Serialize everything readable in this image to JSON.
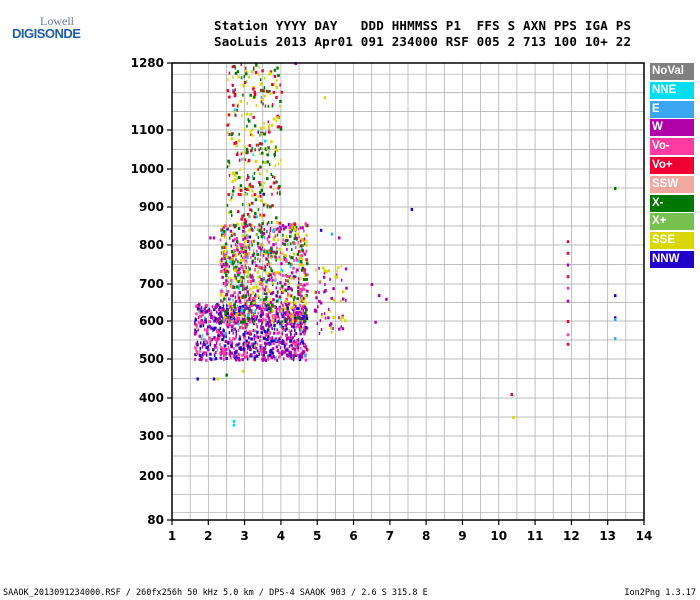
{
  "logo": {
    "line1": "Lowell",
    "line2": "DIGISONDE"
  },
  "header": {
    "line1": "Station YYYY DAY   DDD HHMMSS P1  FFS S AXN PPS IGA PS",
    "line2": "SaoLuis 2013 Apr01 091 234000 RSF 005 2 713 100 10+ 22"
  },
  "legend": [
    {
      "label": "NoVal",
      "color": "#808080"
    },
    {
      "label": "NNE",
      "color": "#00dcf0"
    },
    {
      "label": "E",
      "color": "#3aa6f0"
    },
    {
      "label": "W",
      "color": "#b000a8"
    },
    {
      "label": "Vo-",
      "color": "#ff3aa0"
    },
    {
      "label": "Vo+",
      "color": "#f00030"
    },
    {
      "label": "SSW",
      "color": "#f0a8a0"
    },
    {
      "label": "X-",
      "color": "#007800"
    },
    {
      "label": "X+",
      "color": "#78c050"
    },
    {
      "label": "SSE",
      "color": "#d8d800"
    },
    {
      "label": "NNW",
      "color": "#2000c8"
    }
  ],
  "chart_data": {
    "type": "scatter",
    "title": "",
    "xlabel": "",
    "ylabel": "",
    "xlim": [
      1,
      14
    ],
    "ylim": [
      80,
      1280
    ],
    "y_scale": "nonlinear (ionogram virtual height)",
    "xticks": [
      1,
      2,
      3,
      4,
      5,
      6,
      7,
      8,
      9,
      10,
      11,
      12,
      13,
      14
    ],
    "yticks": [
      80,
      200,
      300,
      400,
      500,
      600,
      700,
      800,
      900,
      1000,
      1100,
      1280
    ],
    "grid": true,
    "legend_position": "right",
    "regions": [
      {
        "x_range": [
          1.6,
          4.7
        ],
        "y_range": [
          500,
          650
        ],
        "density": "high",
        "dominant": [
          "W",
          "Vo-",
          "NNW"
        ]
      },
      {
        "x_range": [
          2.3,
          4.7
        ],
        "y_range": [
          600,
          860
        ],
        "density": "high",
        "dominant": [
          "X-",
          "SSE",
          "Vo-",
          "W"
        ]
      },
      {
        "x_range": [
          2.5,
          4.0
        ],
        "y_range": [
          860,
          1280
        ],
        "density": "medium",
        "dominant": [
          "X-",
          "SSE",
          "Vo+"
        ]
      },
      {
        "x_range": [
          4.9,
          5.8
        ],
        "y_range": [
          570,
          750
        ],
        "density": "low",
        "dominant": [
          "W",
          "SSE"
        ]
      }
    ],
    "points": [
      {
        "x": 2.05,
        "y": 820,
        "series": "W"
      },
      {
        "x": 2.15,
        "y": 820,
        "series": "W"
      },
      {
        "x": 2.7,
        "y": 330,
        "series": "NNE"
      },
      {
        "x": 2.7,
        "y": 340,
        "series": "NNE"
      },
      {
        "x": 2.15,
        "y": 450,
        "series": "NNW"
      },
      {
        "x": 1.7,
        "y": 450,
        "series": "NNW"
      },
      {
        "x": 7.6,
        "y": 895,
        "series": "NNW"
      },
      {
        "x": 6.5,
        "y": 700,
        "series": "W"
      },
      {
        "x": 6.7,
        "y": 670,
        "series": "W"
      },
      {
        "x": 6.9,
        "y": 660,
        "series": "W"
      },
      {
        "x": 6.6,
        "y": 598,
        "series": "W"
      },
      {
        "x": 10.35,
        "y": 410,
        "series": "Vo+"
      },
      {
        "x": 10.4,
        "y": 350,
        "series": "SSE"
      },
      {
        "x": 11.9,
        "y": 810,
        "series": "Vo+"
      },
      {
        "x": 11.9,
        "y": 780,
        "series": "Vo+"
      },
      {
        "x": 11.9,
        "y": 750,
        "series": "W"
      },
      {
        "x": 11.9,
        "y": 720,
        "series": "Vo+"
      },
      {
        "x": 11.9,
        "y": 690,
        "series": "Vo-"
      },
      {
        "x": 11.9,
        "y": 655,
        "series": "W"
      },
      {
        "x": 11.9,
        "y": 600,
        "series": "Vo+"
      },
      {
        "x": 11.9,
        "y": 565,
        "series": "Vo-"
      },
      {
        "x": 11.9,
        "y": 540,
        "series": "Vo+"
      },
      {
        "x": 13.2,
        "y": 950,
        "series": "X-"
      },
      {
        "x": 13.2,
        "y": 670,
        "series": "NNW"
      },
      {
        "x": 13.2,
        "y": 610,
        "series": "NNW"
      },
      {
        "x": 13.2,
        "y": 605,
        "series": "E"
      },
      {
        "x": 13.2,
        "y": 555,
        "series": "E"
      },
      {
        "x": 5.1,
        "y": 840,
        "series": "NNW"
      },
      {
        "x": 5.4,
        "y": 830,
        "series": "E"
      },
      {
        "x": 5.6,
        "y": 820,
        "series": "W"
      },
      {
        "x": 5.2,
        "y": 735,
        "series": "SSE"
      },
      {
        "x": 5.5,
        "y": 720,
        "series": "SSE"
      },
      {
        "x": 5.8,
        "y": 690,
        "series": "W"
      },
      {
        "x": 5.1,
        "y": 650,
        "series": "W"
      },
      {
        "x": 5.3,
        "y": 610,
        "series": "W"
      },
      {
        "x": 5.6,
        "y": 580,
        "series": "W"
      },
      {
        "x": 5.2,
        "y": 1188,
        "series": "SSE"
      },
      {
        "x": 4.4,
        "y": 1280,
        "series": "W"
      },
      {
        "x": 2.25,
        "y": 450,
        "series": "SSE"
      },
      {
        "x": 2.5,
        "y": 460,
        "series": "X-"
      },
      {
        "x": 2.95,
        "y": 470,
        "series": "SSE"
      }
    ]
  },
  "footer": {
    "left": "SAAOK_2013091234000.RSF / 260fx256h 50 kHz 5.0 km / DPS-4 SAAOK 903 / 2.6 S 315.8 E",
    "right": "Ion2Png 1.3.17"
  }
}
